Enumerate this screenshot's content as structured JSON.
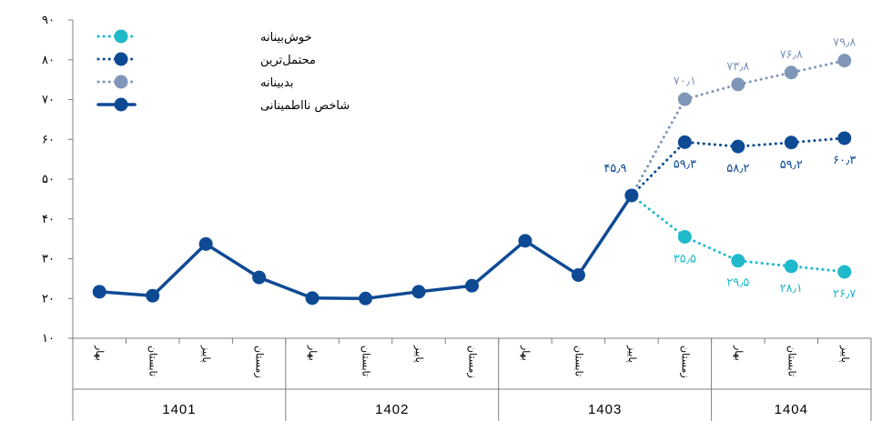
{
  "chart_data": {
    "type": "line",
    "ylim": [
      10,
      90
    ],
    "y_ticks": [
      "۱۰",
      "۲۰",
      "۳۰",
      "۴۰",
      "۵۰",
      "۶۰",
      "۷۰",
      "۸۰",
      "۹۰"
    ],
    "y_tick_values": [
      10,
      20,
      30,
      40,
      50,
      60,
      70,
      80,
      90
    ],
    "categories": [
      "بهار",
      "تابستان",
      "پاییز",
      "زمستان",
      "بهار",
      "تابستان",
      "پاییز",
      "زمستان",
      "بهار",
      "تابستان",
      "پاییز",
      "زمستان",
      "بهار",
      "تابستان",
      "پاییز"
    ],
    "years": [
      {
        "label": "1401",
        "span": 4
      },
      {
        "label": "1402",
        "span": 4
      },
      {
        "label": "1403",
        "span": 4
      },
      {
        "label": "1404",
        "span": 3
      }
    ],
    "grid": false,
    "legend_position": "top-left",
    "series": [
      {
        "name": "خوش‌بینانه",
        "style": "dotted",
        "color": "#1fb9cc",
        "values": [
          null,
          null,
          null,
          null,
          null,
          null,
          null,
          null,
          null,
          null,
          45.9,
          35.5,
          29.5,
          28.1,
          26.7
        ],
        "labels": [
          null,
          null,
          null,
          null,
          null,
          null,
          null,
          null,
          null,
          null,
          null,
          "۳۵٫۵",
          "۲۹٫۵",
          "۲۸٫۱",
          "۲۶٫۷"
        ],
        "label_pos": "below"
      },
      {
        "name": "محتمل‌ترین",
        "style": "dotted",
        "color": "#0e4a94",
        "values": [
          null,
          null,
          null,
          null,
          null,
          null,
          null,
          null,
          null,
          null,
          45.9,
          59.3,
          58.2,
          59.2,
          60.3
        ],
        "labels": [
          null,
          null,
          null,
          null,
          null,
          null,
          null,
          null,
          null,
          null,
          null,
          "۵۹٫۳",
          "۵۸٫۲",
          "۵۹٫۲",
          "۶۰٫۳"
        ],
        "label_pos": "below"
      },
      {
        "name": "بدبینانه",
        "style": "dotted",
        "color": "#8096b8",
        "values": [
          null,
          null,
          null,
          null,
          null,
          null,
          null,
          null,
          null,
          null,
          45.9,
          70.1,
          73.8,
          76.8,
          79.8
        ],
        "labels": [
          null,
          null,
          null,
          null,
          null,
          null,
          null,
          null,
          null,
          null,
          null,
          "۷۰٫۱",
          "۷۳٫۸",
          "۷۶٫۸",
          "۷۹٫۸"
        ],
        "label_pos": "above"
      },
      {
        "name": "شاخص نااطمینانی",
        "style": "solid",
        "color": "#0e4a94",
        "values": [
          21.7,
          20.7,
          33.7,
          25.3,
          20.1,
          20.0,
          21.7,
          23.2,
          34.5,
          25.9,
          45.9,
          null,
          null,
          null,
          null
        ],
        "labels": [
          null,
          null,
          null,
          null,
          null,
          null,
          null,
          null,
          null,
          null,
          "۴۵٫۹",
          null,
          null,
          null,
          null
        ],
        "label_pos": "above"
      }
    ]
  },
  "colors": {
    "axis": "#7f7f7f",
    "label_main": "#0e4a94",
    "label_opt": "#1fb9cc",
    "label_pes": "#8096b8"
  }
}
